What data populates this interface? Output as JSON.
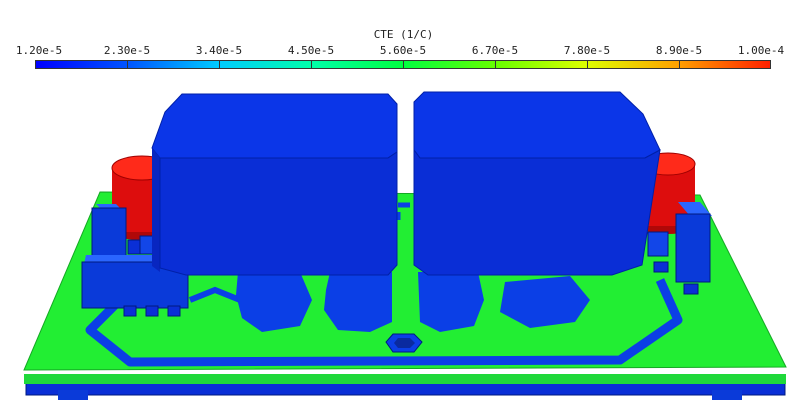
{
  "legend": {
    "title": "CTE (1/C)",
    "ticks": [
      "1.20e-5",
      "2.30e-5",
      "3.40e-5",
      "4.50e-5",
      "5.60e-5",
      "6.70e-5",
      "7.80e-5",
      "8.90e-5",
      "1.00e-4"
    ],
    "gradient": [
      "#0000ff",
      "#0055ff",
      "#00ccff",
      "#00ffaa",
      "#00ff40",
      "#66ff00",
      "#ddff00",
      "#ffa000",
      "#ff2000"
    ]
  },
  "colors": {
    "board": "#22ee33",
    "traces": "#0b3fe6",
    "component_blue": "#0a2fd6",
    "component_red": "#dd0d0d",
    "outline": "#001a80"
  }
}
